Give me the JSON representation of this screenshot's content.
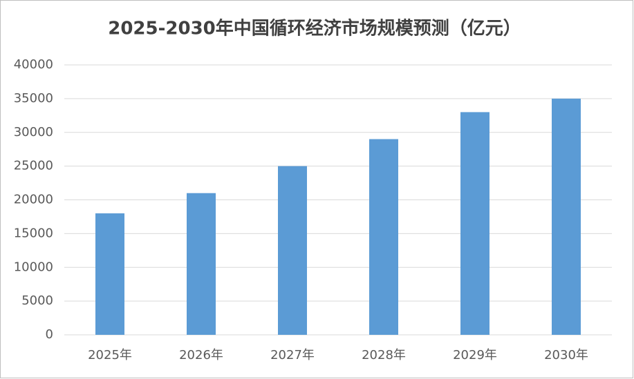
{
  "chart_data": {
    "type": "bar",
    "title": "2025-2030年中国循环经济市场规模预测（亿元）",
    "categories": [
      "2025年",
      "2026年",
      "2027年",
      "2028年",
      "2029年",
      "2030年"
    ],
    "values": [
      18000,
      21000,
      25000,
      29000,
      33000,
      35000
    ],
    "color": "#5b9bd5",
    "ylim": [
      0,
      40000
    ],
    "yticks": [
      0,
      5000,
      10000,
      15000,
      20000,
      25000,
      30000,
      35000,
      40000
    ],
    "grid": true
  }
}
